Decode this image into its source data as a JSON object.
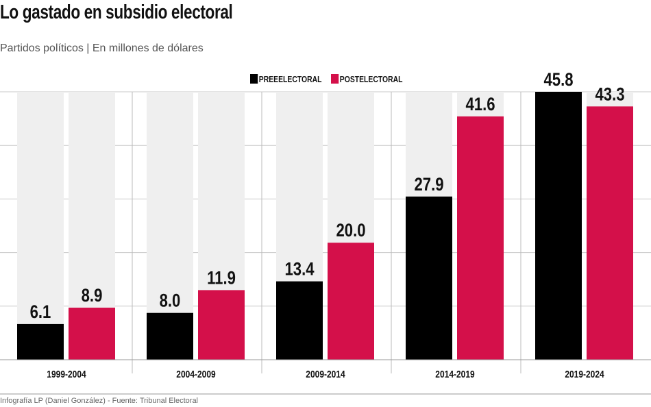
{
  "title": "Lo gastado en subsidio electoral",
  "subtitle": "Partidos políticos  |  En millones de dólares",
  "footer": "Infografía LP (Daniel González) - Fuente: Tribunal Electoral",
  "chart_data": {
    "type": "bar",
    "title": "Lo gastado en subsidio electoral",
    "categories": [
      "1999-2004",
      "2004-2009",
      "2009-2014",
      "2014-2019",
      "2019-2024"
    ],
    "series": [
      {
        "name": "PREEELECTORAL",
        "color": "#000000",
        "values": [
          6.1,
          8.0,
          13.4,
          27.9,
          45.8
        ]
      },
      {
        "name": "POSTELECTORAL",
        "color": "#d4104a",
        "values": [
          8.9,
          11.9,
          20.0,
          41.6,
          43.3
        ]
      }
    ],
    "value_labels": [
      [
        "6.1",
        "8.0",
        "13.4",
        "27.9",
        "45.8"
      ],
      [
        "8.9",
        "11.9",
        "20.0",
        "41.6",
        "43.3"
      ]
    ],
    "ylim": [
      0,
      45.8
    ],
    "grid": true,
    "legend": "top-center"
  }
}
